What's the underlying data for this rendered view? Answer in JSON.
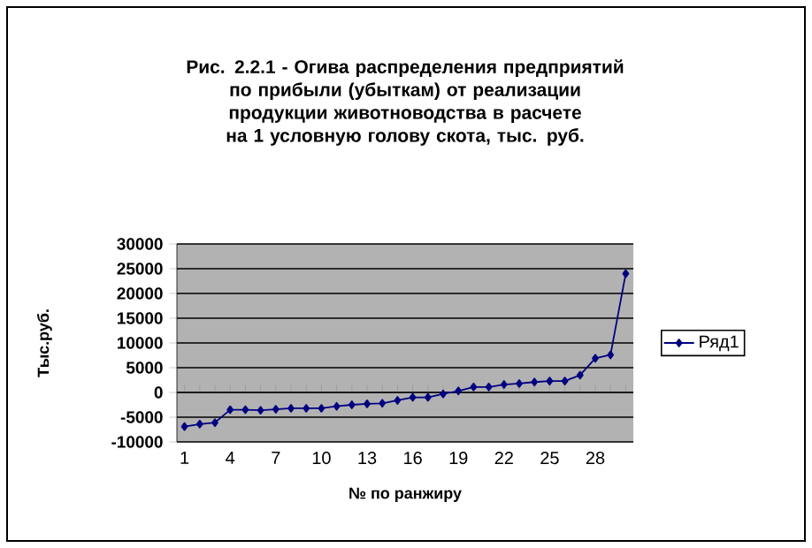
{
  "chart_data": {
    "type": "line",
    "title": "Рис. 2.2.1 - Огива распределения предприятий по прибыли (убыткам) от реализации продукции животноводства в расчете на 1 условную голову скота, тыс. руб.",
    "xlabel": "№ по ранжиру",
    "ylabel": "Тыс.руб.",
    "categories": [
      "1",
      null,
      null,
      "4",
      null,
      null,
      "7",
      null,
      null,
      "10",
      null,
      null,
      "13",
      null,
      null,
      "16",
      null,
      null,
      "19",
      null,
      null,
      "22",
      null,
      null,
      "25",
      null,
      null,
      "28",
      null,
      null
    ],
    "series": [
      {
        "name": "Ряд1",
        "color": "#000080",
        "values": [
          -6900,
          -6400,
          -6100,
          -3500,
          -3500,
          -3600,
          -3400,
          -3200,
          -3200,
          -3200,
          -2800,
          -2500,
          -2300,
          -2200,
          -1600,
          -1000,
          -1000,
          -300,
          300,
          1100,
          1100,
          1600,
          1800,
          2100,
          2300,
          2300,
          3500,
          6900,
          7600,
          24000
        ]
      }
    ],
    "ylim": [
      -10000,
      30000
    ],
    "yticks": [
      -10000,
      -5000,
      0,
      5000,
      10000,
      15000,
      20000,
      25000,
      30000
    ],
    "grid": "y",
    "legend": "right",
    "marker": "diamond",
    "line_style": "solid"
  }
}
